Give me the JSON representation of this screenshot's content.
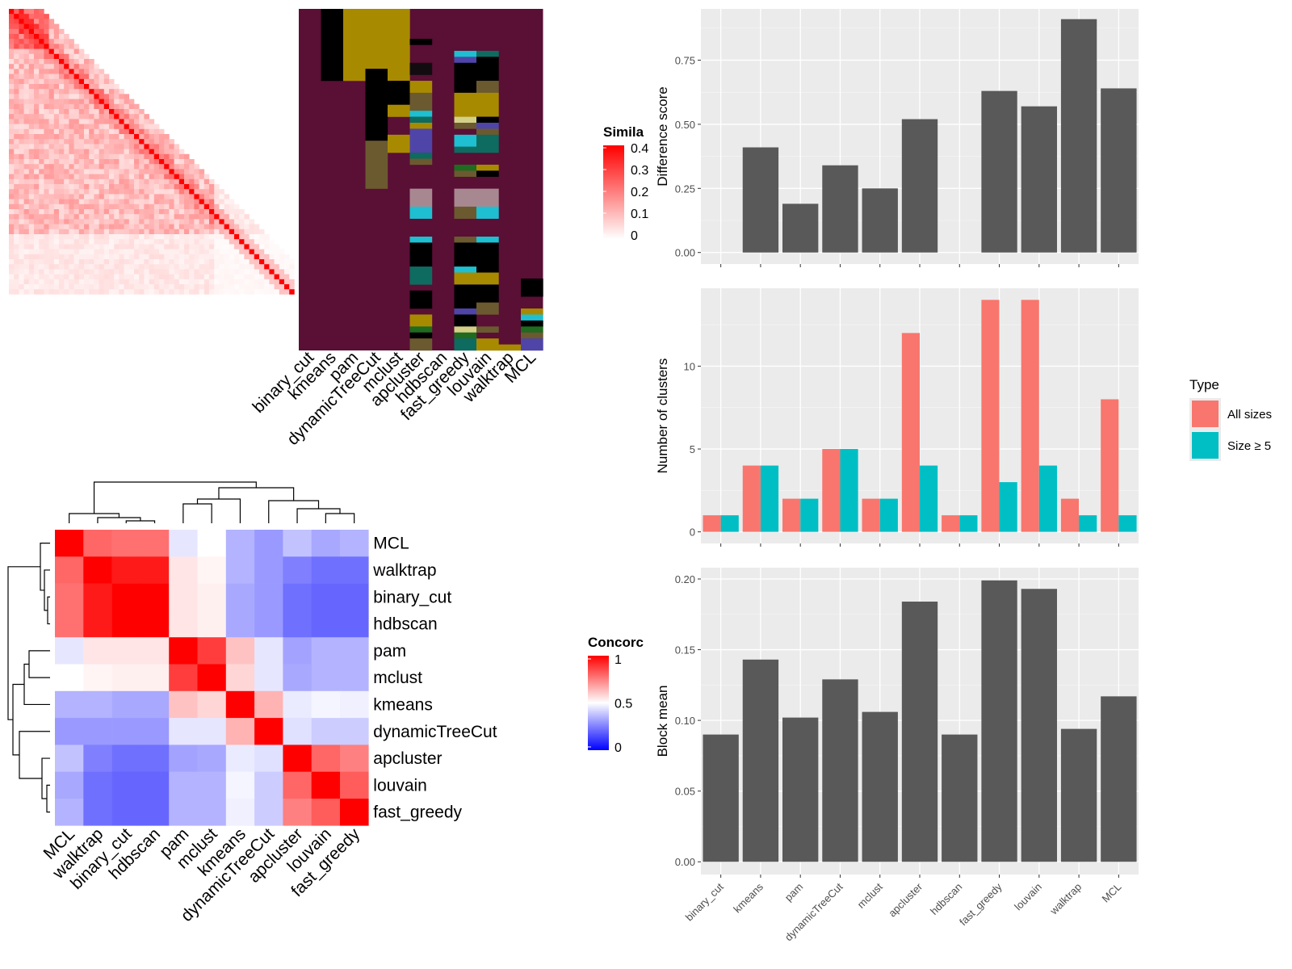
{
  "chart_data": [
    {
      "type": "heatmap",
      "name": "sample-similarity",
      "legend": {
        "title": "Simila",
        "ticks": [
          "0.4",
          "0.3",
          "0.2",
          "0.1",
          "0"
        ],
        "colors": [
          "#ffffff",
          "#ff0000"
        ]
      }
    },
    {
      "type": "table",
      "name": "cluster-assignments",
      "columns": [
        "binary_cut",
        "kmeans",
        "pam",
        "dynamicTreeCut",
        "mclust",
        "apcluster",
        "hdbscan",
        "fast_greedy",
        "louvain",
        "walktrap",
        "MCL"
      ],
      "palette": {
        "bg": "#5a0f35",
        "gold": "#a88a00",
        "black": "#000000",
        "olive": "#6b5a30",
        "cyan": "#1ebfd0",
        "teal": "#0e6b60",
        "blue": "#4f45a8",
        "green": "#1f6b20",
        "pale": "#d4d088",
        "mauve": "#a88890",
        "dark": "#120c10"
      },
      "segments": [
        [],
        [
          [
            "black",
            0,
            12
          ]
        ],
        [
          [
            "gold",
            0,
            12
          ]
        ],
        [
          [
            "gold",
            0,
            10
          ],
          [
            "black",
            10,
            22
          ],
          [
            "olive",
            22,
            30
          ]
        ],
        [
          [
            "gold",
            0,
            12
          ],
          [
            "black",
            12,
            16
          ],
          [
            "gold",
            16,
            18
          ],
          [
            "gold",
            21,
            24
          ]
        ],
        [
          [
            "black",
            5,
            6
          ],
          [
            "dark",
            9,
            11
          ],
          [
            "gold",
            12,
            14
          ],
          [
            "olive",
            14,
            17
          ],
          [
            "cyan",
            17,
            18
          ],
          [
            "teal",
            18,
            19
          ],
          [
            "gold",
            19,
            20
          ],
          [
            "blue",
            20,
            24
          ],
          [
            "teal",
            24,
            25
          ],
          [
            "olive",
            25,
            26
          ],
          [
            "mauve",
            30,
            33
          ],
          [
            "cyan",
            33,
            35
          ],
          [
            "cyan",
            38,
            39
          ],
          [
            "black",
            39,
            43
          ],
          [
            "teal",
            43,
            46
          ],
          [
            "black",
            47,
            50
          ],
          [
            "gold",
            51,
            53
          ],
          [
            "green",
            53,
            54
          ],
          [
            "black",
            54,
            55
          ],
          [
            "olive",
            55,
            57
          ]
        ],
        [],
        [
          [
            "cyan",
            7,
            8
          ],
          [
            "blue",
            8,
            9
          ],
          [
            "black",
            9,
            14
          ],
          [
            "gold",
            14,
            18
          ],
          [
            "pale",
            18,
            19
          ],
          [
            "olive",
            19,
            20
          ],
          [
            "cyan",
            21,
            23
          ],
          [
            "teal",
            23,
            24
          ],
          [
            "green",
            26,
            27
          ],
          [
            "olive",
            27,
            28
          ],
          [
            "mauve",
            30,
            33
          ],
          [
            "olive",
            33,
            35
          ],
          [
            "olive",
            38,
            39
          ],
          [
            "black",
            39,
            43
          ],
          [
            "cyan",
            43,
            44
          ],
          [
            "gold",
            44,
            46
          ],
          [
            "black",
            46,
            50
          ],
          [
            "blue",
            50,
            51
          ],
          [
            "black",
            51,
            53
          ],
          [
            "pale",
            53,
            54
          ],
          [
            "green",
            54,
            55
          ],
          [
            "teal",
            55,
            57
          ]
        ],
        [
          [
            "teal",
            7,
            8
          ],
          [
            "black",
            8,
            12
          ],
          [
            "olive",
            12,
            14
          ],
          [
            "gold",
            14,
            18
          ],
          [
            "black",
            18,
            19
          ],
          [
            "blue",
            19,
            20
          ],
          [
            "olive",
            20,
            21
          ],
          [
            "teal",
            21,
            24
          ],
          [
            "gold",
            26,
            27
          ],
          [
            "black",
            27,
            28
          ],
          [
            "mauve",
            30,
            33
          ],
          [
            "cyan",
            33,
            35
          ],
          [
            "cyan",
            38,
            39
          ],
          [
            "black",
            39,
            44
          ],
          [
            "gold",
            44,
            46
          ],
          [
            "black",
            46,
            49
          ],
          [
            "olive",
            49,
            51
          ],
          [
            "olive",
            53,
            54
          ],
          [
            "gold",
            55,
            57
          ]
        ],
        [
          [
            "gold",
            56,
            57
          ]
        ],
        [
          [
            "black",
            45,
            48
          ],
          [
            "gold",
            50,
            51
          ],
          [
            "cyan",
            51,
            52
          ],
          [
            "black",
            52,
            53
          ],
          [
            "green",
            53,
            54
          ],
          [
            "olive",
            54,
            55
          ],
          [
            "blue",
            55,
            57
          ]
        ]
      ]
    },
    {
      "type": "heatmap",
      "name": "method-concordance",
      "rows": [
        "MCL",
        "walktrap",
        "binary_cut",
        "hdbscan",
        "pam",
        "mclust",
        "kmeans",
        "dynamicTreeCut",
        "apcluster",
        "louvain",
        "fast_greedy"
      ],
      "columns": [
        "MCL",
        "walktrap",
        "binary_cut",
        "hdbscan",
        "pam",
        "mclust",
        "kmeans",
        "dynamicTreeCut",
        "apcluster",
        "louvain",
        "fast_greedy"
      ],
      "values": [
        [
          1.0,
          0.8,
          0.78,
          0.78,
          0.45,
          0.5,
          0.35,
          0.3,
          0.38,
          0.33,
          0.35
        ],
        [
          0.8,
          1.0,
          0.95,
          0.95,
          0.55,
          0.52,
          0.35,
          0.3,
          0.25,
          0.22,
          0.22
        ],
        [
          0.78,
          0.95,
          1.0,
          1.0,
          0.55,
          0.53,
          0.33,
          0.3,
          0.22,
          0.2,
          0.2
        ],
        [
          0.78,
          0.95,
          1.0,
          1.0,
          0.55,
          0.53,
          0.33,
          0.3,
          0.22,
          0.2,
          0.2
        ],
        [
          0.45,
          0.55,
          0.55,
          0.55,
          1.0,
          0.88,
          0.62,
          0.45,
          0.32,
          0.35,
          0.35
        ],
        [
          0.5,
          0.52,
          0.53,
          0.53,
          0.88,
          1.0,
          0.58,
          0.45,
          0.33,
          0.35,
          0.35
        ],
        [
          0.35,
          0.35,
          0.33,
          0.33,
          0.62,
          0.58,
          1.0,
          0.65,
          0.46,
          0.48,
          0.47
        ],
        [
          0.3,
          0.3,
          0.3,
          0.3,
          0.45,
          0.45,
          0.65,
          1.0,
          0.44,
          0.4,
          0.4
        ],
        [
          0.38,
          0.25,
          0.22,
          0.22,
          0.32,
          0.33,
          0.46,
          0.44,
          1.0,
          0.8,
          0.75
        ],
        [
          0.33,
          0.22,
          0.2,
          0.2,
          0.35,
          0.35,
          0.48,
          0.4,
          0.8,
          1.0,
          0.82
        ],
        [
          0.35,
          0.22,
          0.2,
          0.2,
          0.35,
          0.35,
          0.47,
          0.4,
          0.75,
          0.82,
          1.0
        ]
      ],
      "legend": {
        "title": "Concorc",
        "ticks": [
          "1",
          "0.5",
          "0"
        ],
        "colors": [
          "#0000ff",
          "#ffffff",
          "#ff0000"
        ]
      }
    },
    {
      "type": "bar",
      "name": "difference-score",
      "categories": [
        "binary_cut",
        "kmeans",
        "pam",
        "dynamicTreeCut",
        "mclust",
        "apcluster",
        "hdbscan",
        "fast_greedy",
        "louvain",
        "walktrap",
        "MCL"
      ],
      "values": [
        0,
        0.41,
        0.19,
        0.34,
        0.25,
        0.52,
        0,
        0.63,
        0.57,
        0.91,
        0.64
      ],
      "ylabel": "Difference score",
      "ylim": [
        -0.045,
        0.95
      ],
      "yticks": [
        "0.00",
        "0.25",
        "0.50",
        "0.75"
      ],
      "ytick_values": [
        0,
        0.25,
        0.5,
        0.75
      ],
      "bar_color": "#595959"
    },
    {
      "type": "bar",
      "name": "number-of-clusters",
      "categories": [
        "binary_cut",
        "kmeans",
        "pam",
        "dynamicTreeCut",
        "mclust",
        "apcluster",
        "hdbscan",
        "fast_greedy",
        "louvain",
        "walktrap",
        "MCL"
      ],
      "series": [
        {
          "name": "All sizes",
          "color": "#f8766d",
          "values": [
            1,
            4,
            2,
            5,
            2,
            12,
            1,
            14,
            14,
            2,
            8
          ]
        },
        {
          "name": "Size ≥ 5",
          "color": "#00bfc4",
          "values": [
            1,
            4,
            2,
            5,
            2,
            4,
            1,
            3,
            4,
            1,
            1
          ]
        }
      ],
      "ylabel": "Number of clusters",
      "ylim": [
        -0.7,
        14.7
      ],
      "yticks": [
        "0",
        "5",
        "10"
      ],
      "ytick_values": [
        0,
        5,
        10
      ],
      "legend": {
        "title": "Type",
        "position": "right"
      }
    },
    {
      "type": "bar",
      "name": "block-mean",
      "categories": [
        "binary_cut",
        "kmeans",
        "pam",
        "dynamicTreeCut",
        "mclust",
        "apcluster",
        "hdbscan",
        "fast_greedy",
        "louvain",
        "walktrap",
        "MCL"
      ],
      "values": [
        0.09,
        0.143,
        0.102,
        0.129,
        0.106,
        0.184,
        0.09,
        0.199,
        0.193,
        0.094,
        0.117
      ],
      "ylabel": "Block mean",
      "ylim": [
        -0.009,
        0.208
      ],
      "yticks": [
        "0.00",
        "0.05",
        "0.10",
        "0.15",
        "0.20"
      ],
      "ytick_values": [
        0,
        0.05,
        0.1,
        0.15,
        0.2
      ],
      "bar_color": "#595959"
    }
  ]
}
